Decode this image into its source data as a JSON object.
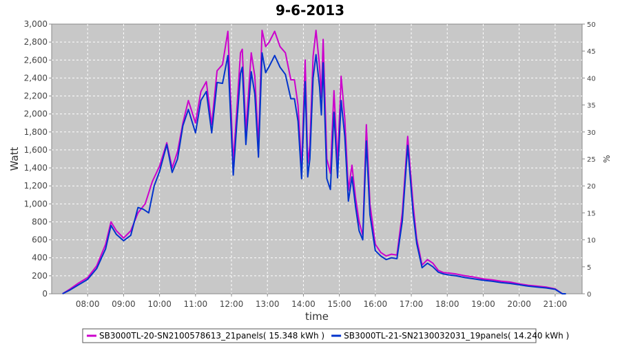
{
  "chart_data": {
    "type": "line",
    "title": "9-6-2013",
    "xlabel": "time",
    "ylabel": "Watt",
    "y2label": "%",
    "ylim": [
      0,
      3000
    ],
    "y2lim": [
      0,
      50
    ],
    "xlim": [
      7.0,
      21.75
    ],
    "yticks": [
      0,
      200,
      400,
      600,
      800,
      1000,
      1200,
      1400,
      1600,
      1800,
      2000,
      2200,
      2400,
      2600,
      2800,
      3000
    ],
    "ytick_labels": [
      "0",
      "200",
      "400",
      "600",
      "800",
      "1,000",
      "1,200",
      "1,400",
      "1,600",
      "1,800",
      "2,000",
      "2,200",
      "2,400",
      "2,600",
      "2,800",
      "3,000"
    ],
    "y2ticks": [
      0,
      5,
      10,
      15,
      20,
      25,
      30,
      35,
      40,
      45,
      50
    ],
    "y2tick_labels": [
      "0",
      "5",
      "10",
      "15",
      "20",
      "25",
      "30",
      "35",
      "40",
      "45",
      "50"
    ],
    "xticks": [
      8,
      9,
      10,
      11,
      12,
      13,
      14,
      15,
      16,
      17,
      18,
      19,
      20,
      21
    ],
    "xtick_labels": [
      "08:00",
      "09:00",
      "10:00",
      "11:00",
      "12:00",
      "13:00",
      "14:00",
      "15:00",
      "16:00",
      "17:00",
      "18:00",
      "19:00",
      "20:00",
      "21:00"
    ],
    "grid": true,
    "legend_position": "bottom",
    "colors": {
      "plot_bg": "#c8c8c8",
      "grid": "#ffffff",
      "frame": "#888888"
    },
    "series": [
      {
        "name": "SB3000TL-20-SN2100578613_21panels( 15.348 kWh )",
        "color": "#cc00cc",
        "x": [
          7.3,
          7.5,
          7.75,
          8.0,
          8.25,
          8.5,
          8.65,
          8.8,
          9.0,
          9.2,
          9.4,
          9.6,
          9.8,
          10.0,
          10.2,
          10.35,
          10.5,
          10.65,
          10.8,
          11.0,
          11.15,
          11.3,
          11.45,
          11.6,
          11.75,
          11.9,
          12.05,
          12.15,
          12.25,
          12.3,
          12.4,
          12.55,
          12.65,
          12.75,
          12.85,
          12.95,
          13.05,
          13.2,
          13.35,
          13.5,
          13.65,
          13.75,
          13.85,
          13.95,
          14.05,
          14.12,
          14.18,
          14.27,
          14.35,
          14.45,
          14.5,
          14.55,
          14.65,
          14.75,
          14.85,
          14.95,
          15.05,
          15.15,
          15.25,
          15.35,
          15.45,
          15.55,
          15.65,
          15.75,
          15.85,
          16.0,
          16.15,
          16.3,
          16.45,
          16.6,
          16.75,
          16.9,
          17.05,
          17.15,
          17.3,
          17.45,
          17.6,
          17.75,
          17.9,
          18.05,
          18.25,
          18.5,
          18.75,
          19.0,
          19.25,
          19.5,
          19.75,
          20.0,
          20.25,
          20.5,
          20.75,
          21.0,
          21.2,
          21.3
        ],
        "values": [
          0,
          50,
          120,
          180,
          310,
          550,
          800,
          700,
          620,
          700,
          900,
          1000,
          1250,
          1420,
          1680,
          1400,
          1580,
          1900,
          2150,
          1900,
          2250,
          2360,
          1880,
          2480,
          2550,
          2920,
          1460,
          2050,
          2680,
          2720,
          1800,
          2680,
          2420,
          1650,
          2930,
          2750,
          2800,
          2920,
          2750,
          2680,
          2380,
          2380,
          2100,
          1400,
          2600,
          1450,
          1650,
          2640,
          2930,
          2530,
          2180,
          2830,
          1500,
          1340,
          2260,
          1450,
          2420,
          1950,
          1150,
          1430,
          1070,
          800,
          650,
          1880,
          1000,
          550,
          460,
          420,
          440,
          430,
          900,
          1750,
          1000,
          610,
          320,
          380,
          340,
          260,
          235,
          230,
          220,
          200,
          185,
          165,
          155,
          140,
          130,
          110,
          95,
          85,
          75,
          55,
          0,
          0
        ]
      },
      {
        "name": "SB3000TL-21-SN2130032031_19panels( 14.240 kWh )",
        "color": "#0033cc",
        "x": [
          7.3,
          7.5,
          7.75,
          8.0,
          8.25,
          8.5,
          8.65,
          8.8,
          9.0,
          9.2,
          9.4,
          9.55,
          9.7,
          9.85,
          10.0,
          10.2,
          10.35,
          10.5,
          10.65,
          10.8,
          11.0,
          11.15,
          11.3,
          11.45,
          11.6,
          11.75,
          11.9,
          12.05,
          12.15,
          12.25,
          12.3,
          12.4,
          12.55,
          12.65,
          12.75,
          12.85,
          12.95,
          13.05,
          13.2,
          13.35,
          13.5,
          13.65,
          13.75,
          13.85,
          13.95,
          14.05,
          14.12,
          14.18,
          14.27,
          14.35,
          14.45,
          14.5,
          14.55,
          14.65,
          14.75,
          14.85,
          14.95,
          15.05,
          15.15,
          15.25,
          15.35,
          15.45,
          15.55,
          15.65,
          15.75,
          15.85,
          16.0,
          16.15,
          16.3,
          16.45,
          16.6,
          16.75,
          16.9,
          17.05,
          17.15,
          17.3,
          17.45,
          17.6,
          17.75,
          17.9,
          18.05,
          18.25,
          18.5,
          18.75,
          19.0,
          19.25,
          19.5,
          19.75,
          20.0,
          20.25,
          20.5,
          20.75,
          21.0,
          21.2,
          21.3
        ],
        "values": [
          0,
          40,
          100,
          160,
          280,
          500,
          760,
          660,
          590,
          650,
          960,
          940,
          900,
          1200,
          1360,
          1660,
          1350,
          1500,
          1870,
          2050,
          1790,
          2150,
          2250,
          1790,
          2350,
          2340,
          2650,
          1320,
          1900,
          2450,
          2520,
          1660,
          2470,
          2220,
          1520,
          2680,
          2460,
          2530,
          2650,
          2520,
          2440,
          2170,
          2170,
          1920,
          1280,
          2360,
          1300,
          1500,
          2400,
          2660,
          2300,
          1990,
          2570,
          1280,
          1160,
          2020,
          1290,
          2150,
          1750,
          1030,
          1300,
          970,
          700,
          600,
          1700,
          880,
          480,
          420,
          380,
          400,
          390,
          810,
          1650,
          900,
          560,
          290,
          340,
          300,
          240,
          220,
          210,
          200,
          180,
          165,
          150,
          140,
          125,
          115,
          100,
          85,
          75,
          65,
          50,
          0,
          0
        ]
      }
    ]
  }
}
